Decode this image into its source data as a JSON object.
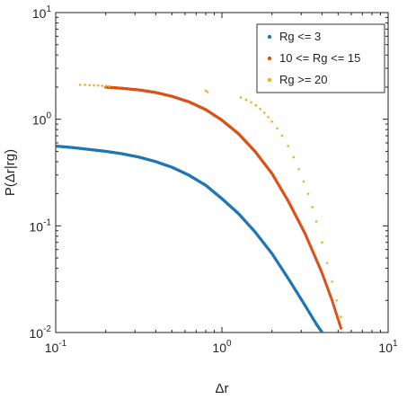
{
  "chart_data": {
    "type": "scatter",
    "xscale": "log",
    "yscale": "log",
    "xlim": [
      0.1,
      10
    ],
    "ylim": [
      0.01,
      10
    ],
    "xlabel": "Δr",
    "ylabel": "P(Δr|rg)",
    "x_ticks": [
      {
        "value": 0.1,
        "base": "10",
        "exp": "-1"
      },
      {
        "value": 1,
        "base": "10",
        "exp": "0"
      },
      {
        "value": 10,
        "base": "10",
        "exp": "1"
      }
    ],
    "y_ticks": [
      {
        "value": 0.01,
        "base": "10",
        "exp": "-2"
      },
      {
        "value": 0.1,
        "base": "10",
        "exp": "-1"
      },
      {
        "value": 1,
        "base": "10",
        "exp": "0"
      },
      {
        "value": 10,
        "base": "10",
        "exp": "1"
      }
    ],
    "grid": false,
    "legend_position": "top-right",
    "series": [
      {
        "name": "Rg <= 3",
        "color": "#1f77b4",
        "style": "dense",
        "x": [
          0.1,
          0.13,
          0.16,
          0.2,
          0.25,
          0.32,
          0.4,
          0.5,
          0.63,
          0.8,
          1.0,
          1.26,
          1.58,
          2.0,
          2.51,
          3.16,
          3.7,
          4.1
        ],
        "y": [
          0.56,
          0.54,
          0.52,
          0.5,
          0.475,
          0.44,
          0.4,
          0.355,
          0.3,
          0.24,
          0.18,
          0.13,
          0.088,
          0.055,
          0.032,
          0.018,
          0.012,
          0.0095
        ]
      },
      {
        "name": "10 <= Rg <= 15",
        "color": "#d95319",
        "style": "dense",
        "x": [
          0.2,
          0.25,
          0.32,
          0.4,
          0.5,
          0.63,
          0.8,
          1.0,
          1.26,
          1.58,
          2.0,
          2.51,
          3.16,
          3.98,
          4.6,
          5.2
        ],
        "y": [
          2.0,
          1.95,
          1.88,
          1.78,
          1.64,
          1.46,
          1.23,
          0.98,
          0.73,
          0.5,
          0.31,
          0.17,
          0.085,
          0.037,
          0.02,
          0.011
        ]
      },
      {
        "name": "Rg >= 20",
        "color": "#edb120",
        "style": "sparse",
        "x": [
          0.14,
          0.15,
          0.16,
          0.17,
          0.18,
          0.19,
          0.2,
          0.21,
          0.8,
          0.82,
          1.3,
          1.4,
          1.5,
          1.6,
          1.7,
          1.8,
          1.9,
          2.0,
          2.15,
          2.3,
          2.5,
          2.7,
          2.9,
          3.1,
          3.3,
          3.5,
          3.7,
          4.0,
          4.3,
          4.6,
          4.9,
          5.2,
          5.5
        ],
        "y": [
          2.1,
          2.1,
          2.09,
          2.08,
          2.07,
          2.06,
          2.05,
          2.04,
          1.85,
          1.8,
          1.6,
          1.52,
          1.44,
          1.35,
          1.25,
          1.15,
          1.05,
          0.95,
          0.82,
          0.7,
          0.56,
          0.44,
          0.34,
          0.26,
          0.2,
          0.15,
          0.11,
          0.07,
          0.045,
          0.03,
          0.02,
          0.014,
          0.01
        ]
      }
    ]
  }
}
